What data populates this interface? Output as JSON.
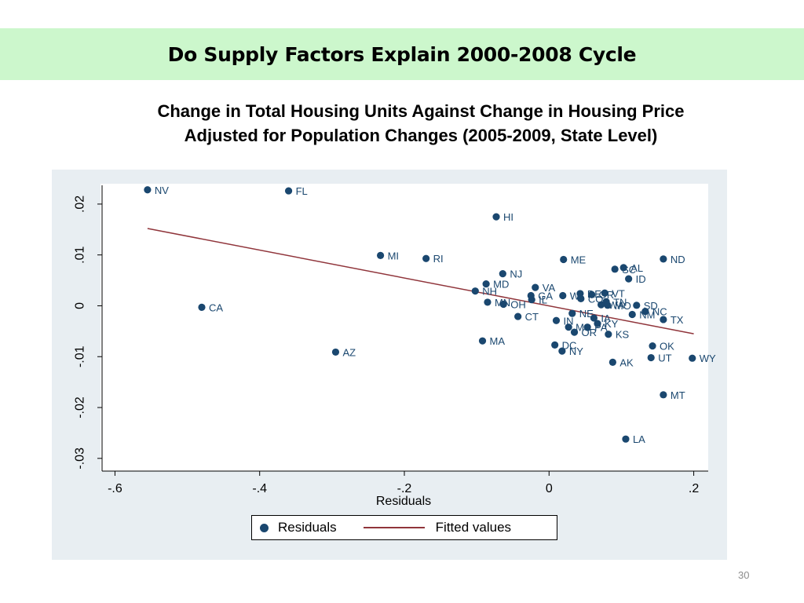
{
  "slide": {
    "title": "Do Supply Factors Explain 2000-2008 Cycle",
    "subtitle_line1": "Change in Total Housing Units Against Change in Housing Price",
    "subtitle_line2": "Adjusted for Population Changes (2005-2009, State Level)",
    "page_number": "30",
    "title_band_color": "#ccf7cc"
  },
  "chart_data": {
    "type": "scatter",
    "xlabel": "Residuals",
    "ylabel": "",
    "xlim": [
      -0.62,
      0.22
    ],
    "ylim": [
      -0.0325,
      0.024
    ],
    "x_ticks": [
      {
        "v": -0.6,
        "label": "-.6"
      },
      {
        "v": -0.4,
        "label": "-.4"
      },
      {
        "v": -0.2,
        "label": "-.2"
      },
      {
        "v": 0,
        "label": "0"
      },
      {
        "v": 0.2,
        "label": ".2"
      }
    ],
    "y_ticks": [
      {
        "v": -0.03,
        "label": "-.03"
      },
      {
        "v": -0.02,
        "label": "-.02"
      },
      {
        "v": -0.01,
        "label": "-.01"
      },
      {
        "v": 0,
        "label": "0"
      },
      {
        "v": 0.01,
        "label": ".01"
      },
      {
        "v": 0.02,
        "label": ".02"
      }
    ],
    "grid": false,
    "legend": {
      "position": "bottom",
      "items": [
        "Residuals",
        "Fitted values"
      ]
    },
    "colors": {
      "points": "#1a476f",
      "fit": "#90353b",
      "plot_bg": "#ffffff",
      "outer_bg": "#e8eef2"
    },
    "fitted_line": {
      "x": [
        -0.555,
        0.2
      ],
      "y": [
        0.0152,
        -0.0055
      ]
    },
    "points": [
      {
        "label": "NV",
        "x": -0.555,
        "y": 0.0228
      },
      {
        "label": "FL",
        "x": -0.36,
        "y": 0.0226
      },
      {
        "label": "HI",
        "x": -0.073,
        "y": 0.0175
      },
      {
        "label": "MI",
        "x": -0.233,
        "y": 0.0099
      },
      {
        "label": "RI",
        "x": -0.17,
        "y": 0.0093
      },
      {
        "label": "ME",
        "x": 0.02,
        "y": 0.0091
      },
      {
        "label": "ND",
        "x": 0.158,
        "y": 0.0092
      },
      {
        "label": "AL",
        "x": 0.103,
        "y": 0.0075
      },
      {
        "label": "SC",
        "x": 0.091,
        "y": 0.0072
      },
      {
        "label": "ID",
        "x": 0.11,
        "y": 0.0053
      },
      {
        "label": "NJ",
        "x": -0.064,
        "y": 0.0063
      },
      {
        "label": "MD",
        "x": -0.087,
        "y": 0.0043
      },
      {
        "label": "VA",
        "x": -0.019,
        "y": 0.0036
      },
      {
        "label": "NH",
        "x": -0.102,
        "y": 0.0029
      },
      {
        "label": "GA",
        "x": -0.025,
        "y": 0.002
      },
      {
        "label": "IL",
        "x": -0.024,
        "y": 0.0012
      },
      {
        "label": "MN",
        "x": -0.085,
        "y": 0.0007
      },
      {
        "label": "OH",
        "x": -0.063,
        "y": 0.0003
      },
      {
        "label": "WI",
        "x": 0.019,
        "y": 0.002
      },
      {
        "label": "DE",
        "x": 0.043,
        "y": 0.0024
      },
      {
        "label": "OR",
        "x": 0.059,
        "y": 0.0022
      },
      {
        "label": "VT",
        "x": 0.077,
        "y": 0.0025
      },
      {
        "label": "CO",
        "x": 0.044,
        "y": 0.0014
      },
      {
        "label": "TN",
        "x": 0.079,
        "y": 0.0008
      },
      {
        "label": "WA",
        "x": 0.072,
        "y": 0.0002
      },
      {
        "label": "MO",
        "x": 0.081,
        "y": 0.0001
      },
      {
        "label": "SD",
        "x": 0.121,
        "y": 0.0001
      },
      {
        "label": "NC",
        "x": 0.133,
        "y": -0.0011
      },
      {
        "label": "NM",
        "x": 0.115,
        "y": -0.0017
      },
      {
        "label": "TX",
        "x": 0.158,
        "y": -0.0027
      },
      {
        "label": "CT",
        "x": -0.043,
        "y": -0.0021
      },
      {
        "label": "NE",
        "x": 0.032,
        "y": -0.0015
      },
      {
        "label": "IA",
        "x": 0.062,
        "y": -0.0024
      },
      {
        "label": "IN",
        "x": 0.01,
        "y": -0.0029
      },
      {
        "label": "KY",
        "x": 0.067,
        "y": -0.0035
      },
      {
        "label": "PA",
        "x": 0.053,
        "y": -0.0042
      },
      {
        "label": "MS",
        "x": 0.027,
        "y": -0.0042
      },
      {
        "label": "OR",
        "x": 0.035,
        "y": -0.0052
      },
      {
        "label": "KS",
        "x": 0.082,
        "y": -0.0056
      },
      {
        "label": "CA",
        "x": -0.48,
        "y": -0.0003
      },
      {
        "label": "MA",
        "x": -0.092,
        "y": -0.0069
      },
      {
        "label": "DC",
        "x": 0.008,
        "y": -0.0077
      },
      {
        "label": "NY",
        "x": 0.018,
        "y": -0.0089
      },
      {
        "label": "AZ",
        "x": -0.295,
        "y": -0.0091
      },
      {
        "label": "OK",
        "x": 0.143,
        "y": -0.0079
      },
      {
        "label": "UT",
        "x": 0.141,
        "y": -0.0102
      },
      {
        "label": "WY",
        "x": 0.198,
        "y": -0.0103
      },
      {
        "label": "AK",
        "x": 0.088,
        "y": -0.0111
      },
      {
        "label": "MT",
        "x": 0.158,
        "y": -0.0175
      },
      {
        "label": "LA",
        "x": 0.106,
        "y": -0.0262
      }
    ]
  }
}
